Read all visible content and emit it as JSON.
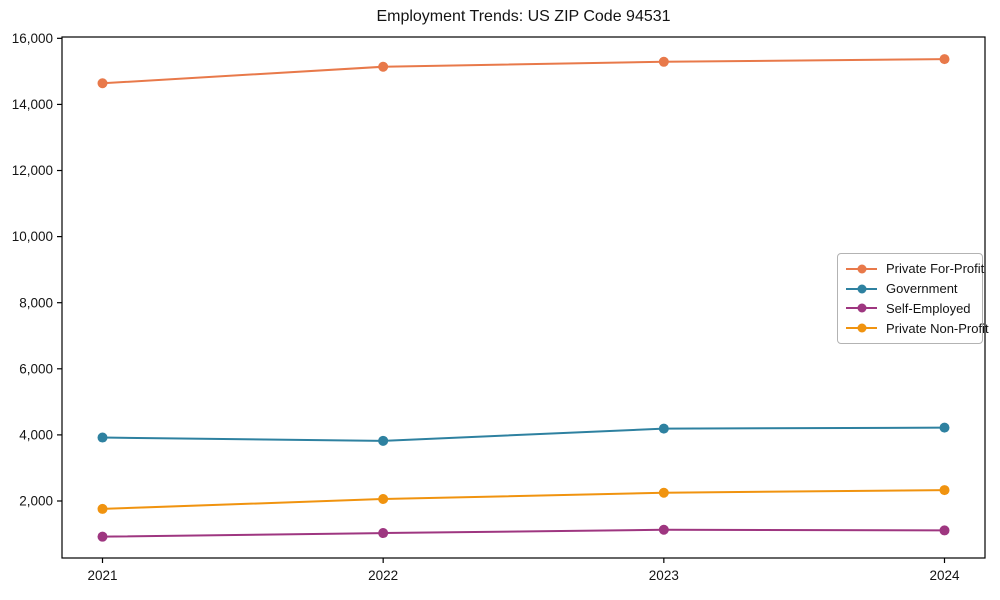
{
  "chart_data": {
    "type": "line",
    "title": "Employment Trends: US ZIP Code 94531",
    "x": [
      "2021",
      "2022",
      "2023",
      "2024"
    ],
    "series": [
      {
        "name": "Private For-Profit",
        "color": "#E8794A",
        "values": [
          14640,
          15140,
          15290,
          15370
        ]
      },
      {
        "name": "Government",
        "color": "#2E81A0",
        "values": [
          3920,
          3820,
          4190,
          4220
        ]
      },
      {
        "name": "Self-Employed",
        "color": "#9E3680",
        "values": [
          920,
          1030,
          1130,
          1110
        ]
      },
      {
        "name": "Private Non-Profit",
        "color": "#F0930F",
        "values": [
          1760,
          2060,
          2250,
          2330
        ]
      }
    ],
    "xlabel": "",
    "ylabel": "",
    "ylim": [
      275,
      16040
    ],
    "yticks": [
      2000,
      4000,
      6000,
      8000,
      10000,
      12000,
      14000,
      16000
    ],
    "grid": false,
    "marker": "circle",
    "legend_position": "right-middle",
    "axis_color": "#000000",
    "tick_label_color": "#141414"
  }
}
